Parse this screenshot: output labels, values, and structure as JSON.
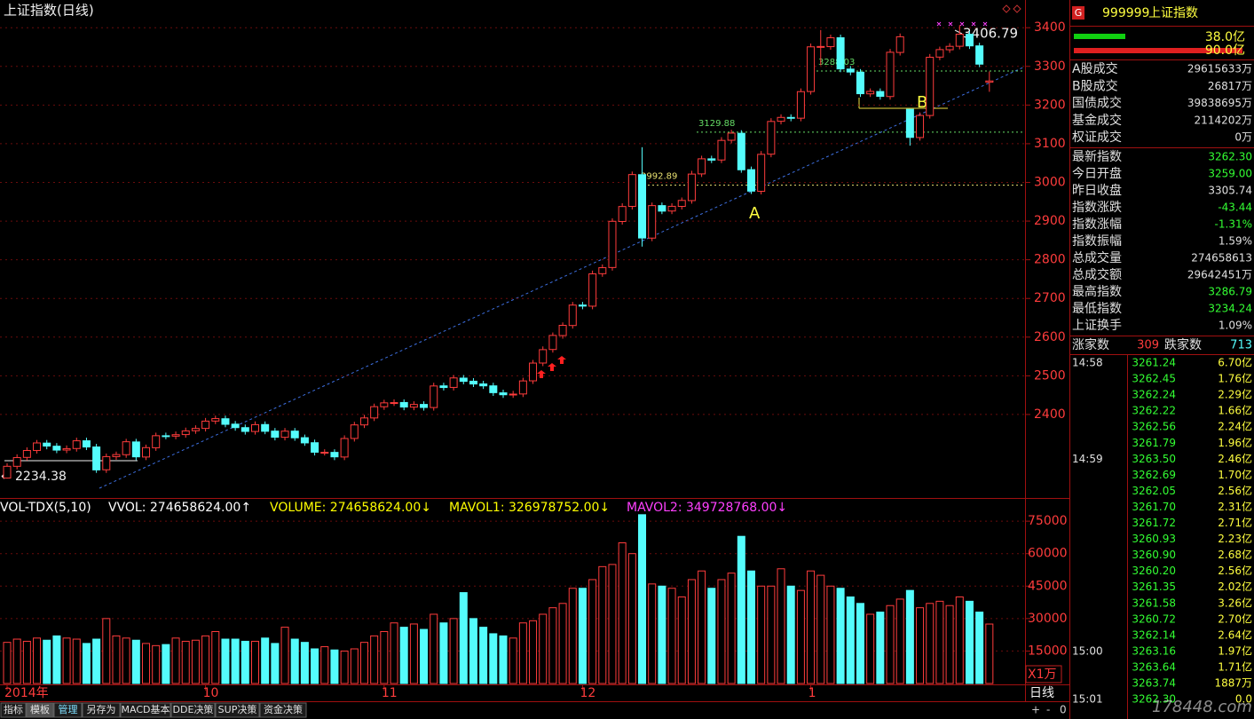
{
  "chart_data": [
    {
      "type": "candlestick",
      "title": "上证指数(日线)",
      "categories": [
        "2014年",
        null,
        null,
        null,
        null,
        null,
        null,
        null,
        null,
        null,
        null,
        null,
        null,
        null,
        null,
        null,
        null,
        null,
        null,
        null,
        "10",
        null,
        null,
        null,
        null,
        null,
        null,
        null,
        null,
        null,
        null,
        null,
        null,
        null,
        null,
        null,
        null,
        null,
        "11",
        null,
        null,
        null,
        null,
        null,
        null,
        null,
        null,
        null,
        null,
        null,
        null,
        null,
        null,
        null,
        null,
        null,
        null,
        null,
        "12",
        null,
        null,
        null,
        null,
        null,
        null,
        null,
        null,
        null,
        null,
        null,
        null,
        null,
        null,
        null,
        null,
        null,
        null,
        null,
        null,
        null,
        null,
        "1",
        null,
        null,
        null,
        null,
        null,
        null,
        null,
        null,
        null,
        null,
        null,
        null,
        null,
        null,
        null,
        null,
        null,
        null
      ],
      "open": [
        2235.5,
        2266,
        2289,
        2307,
        2326,
        2318,
        2308,
        2312,
        2332,
        2316,
        2257,
        2291,
        2296,
        2329,
        2290,
        2314,
        2345,
        2344,
        2348,
        2358,
        2364,
        2383,
        2389,
        2375,
        2366,
        2356,
        2374,
        2357,
        2341,
        2357,
        2340,
        2327,
        2302,
        2302,
        2290,
        2338,
        2373,
        2391,
        2420,
        2430,
        2431,
        2419,
        2426,
        2418,
        2474,
        2470,
        2494,
        2486,
        2479,
        2474,
        2456,
        2451,
        2453,
        2487,
        2533,
        2568,
        2604,
        2630,
        2683,
        2680,
        2764,
        2780,
        2899,
        2938,
        3020,
        2856,
        2940,
        2926,
        2938,
        2953,
        3022,
        3061,
        3058,
        3109,
        3127,
        3033,
        2977,
        3073,
        3158,
        3168,
        3166,
        3235,
        3351,
        3351,
        3374,
        3293,
        3285,
        3229,
        3235,
        3222,
        3336,
        3189,
        3116,
        3173,
        3324,
        3343,
        3352,
        3383,
        3353,
        3259
      ],
      "high": [
        2274,
        2297,
        2315,
        2334,
        2334,
        2326,
        2320,
        2340,
        2340,
        2324,
        2299,
        2304,
        2337,
        2337,
        2322,
        2353,
        2353,
        2356,
        2366,
        2372,
        2391,
        2397,
        2397,
        2383,
        2374,
        2382,
        2382,
        2365,
        2365,
        2365,
        2348,
        2335,
        2310,
        2310,
        2346,
        2381,
        2399,
        2428,
        2438,
        2439,
        2439,
        2434,
        2434,
        2482,
        2482,
        2502,
        2502,
        2494,
        2487,
        2482,
        2464,
        2461,
        2495,
        2541,
        2576,
        2612,
        2638,
        2691,
        2691,
        2772,
        2788,
        2907,
        2946,
        3028,
        3091,
        2948,
        2948,
        2946,
        2961,
        3030,
        3069,
        3069,
        3117,
        3136,
        3135,
        3041,
        3081,
        3166,
        3176,
        3176,
        3243,
        3359,
        3394,
        3382,
        3382,
        3301,
        3293,
        3243,
        3243,
        3345,
        3385,
        3189,
        3181,
        3332,
        3351,
        3360,
        3406.79,
        3391,
        3361,
        3286.79
      ],
      "low": [
        2234.38,
        2258,
        2281,
        2299,
        2310,
        2300,
        2300,
        2304,
        2308,
        2249,
        2249,
        2283,
        2288,
        2282,
        2282,
        2306,
        2336,
        2336,
        2340,
        2350,
        2356,
        2375,
        2367,
        2358,
        2348,
        2348,
        2349,
        2333,
        2333,
        2332,
        2319,
        2294,
        2294,
        2282,
        2282,
        2330,
        2365,
        2383,
        2412,
        2422,
        2411,
        2411,
        2410,
        2410,
        2462,
        2462,
        2478,
        2471,
        2466,
        2448,
        2443,
        2443,
        2445,
        2479,
        2525,
        2560,
        2596,
        2622,
        2672,
        2672,
        2756,
        2772,
        2891,
        2930,
        2834,
        2848,
        2918,
        2918,
        2930,
        2945,
        3014,
        3050,
        3050,
        3101,
        3025,
        2970,
        2969,
        3065,
        3150,
        3158,
        3158,
        3227,
        3303,
        3343,
        3285,
        3277,
        3221,
        3221,
        3214,
        3214,
        3328,
        3095,
        3108,
        3165,
        3316,
        3335,
        3344,
        3345,
        3298,
        3234.24
      ],
      "close": [
        2266.05,
        2288.63,
        2306.85,
        2326.43,
        2318.31,
        2307.88,
        2311.67,
        2331.95,
        2315.93,
        2256.68,
        2291.04,
        2296.31,
        2329.45,
        2290.44,
        2314.3,
        2345.1,
        2343.57,
        2347.72,
        2357.55,
        2363.87,
        2382.79,
        2389.37,
        2374.54,
        2366.01,
        2356.19,
        2373.67,
        2356.5,
        2341.18,
        2356.84,
        2339.66,
        2326.55,
        2302.42,
        2302.28,
        2290.44,
        2337.86,
        2373.03,
        2391.08,
        2420.18,
        2430.03,
        2430.68,
        2419.25,
        2425.86,
        2418.17,
        2473.67,
        2469.67,
        2494.48,
        2485.61,
        2478.82,
        2474.01,
        2456.37,
        2450.99,
        2452.66,
        2486.79,
        2532.88,
        2567.6,
        2604.35,
        2630.49,
        2682.84,
        2680.16,
        2763.55,
        2779.53,
        2899.46,
        2937.65,
        3020.26,
        2856.27,
        2940.01,
        2925.74,
        2938.17,
        2953.42,
        3021.52,
        3061.02,
        3057.52,
        3108.6,
        3127.45,
        3032.61,
        2977.44,
        3072.54,
        3157.6,
        3168.02,
        3165.82,
        3234.68,
        3350.52,
        3351.45,
        3373.95,
        3293.46,
        3285.41,
        3229.32,
        3235.3,
        3222.44,
        3336.45,
        3376.5,
        3116.35,
        3173.05,
        3323.61,
        3343.34,
        3351.76,
        3383.18,
        3352.96,
        3305.74,
        3262.3
      ],
      "up_color": "#ff3c3c",
      "down_color": "#54fcfc",
      "ylim": [
        2191,
        3467
      ],
      "yticks": [
        2400,
        2500,
        2600,
        2700,
        2800,
        2900,
        3000,
        3100,
        3200,
        3300,
        3400
      ],
      "grid": true,
      "levels": [
        {
          "value": 2992.89,
          "color": "#e8e070"
        },
        {
          "value": 3129.88,
          "color": "#66dd66"
        },
        {
          "value": 3288.03,
          "color": "#66dd66"
        }
      ],
      "annotations": [
        "A",
        "B"
      ]
    },
    {
      "type": "bar",
      "legend_texts": [
        {
          "text": "VOL-TDX(5,10)",
          "color": "#ffffff"
        },
        {
          "text": "VVOL: 274658624.00↑",
          "color": "#ffffff"
        },
        {
          "text": "VOLUME: 274658624.00↓",
          "color": "#ffff00"
        },
        {
          "text": "MAVOL1: 326978752.00↓",
          "color": "#ffff00"
        },
        {
          "text": "MAVOL2: 349728768.00↓",
          "color": "#ff40ff"
        }
      ],
      "unit_label": "X1万",
      "values": [
        19000,
        20500,
        19500,
        21000,
        20000,
        22000,
        21000,
        20500,
        18500,
        20500,
        30000,
        22000,
        21000,
        20000,
        18500,
        17500,
        18000,
        21000,
        19500,
        20000,
        22000,
        24000,
        20500,
        20500,
        19500,
        19500,
        21000,
        18500,
        26000,
        20500,
        19000,
        16000,
        17000,
        15500,
        15000,
        16000,
        19000,
        22000,
        24000,
        28000,
        26000,
        27500,
        25000,
        32000,
        28000,
        30000,
        42000,
        30000,
        26000,
        23000,
        22000,
        21000,
        28000,
        29000,
        32000,
        35000,
        37000,
        44000,
        44000,
        48000,
        54000,
        55000,
        65000,
        60000,
        78000,
        46000,
        45000,
        44000,
        40000,
        48000,
        52000,
        44000,
        48000,
        51000,
        68000,
        52000,
        45000,
        45000,
        53000,
        45000,
        43000,
        52000,
        50000,
        45000,
        44000,
        40000,
        37000,
        32000,
        33000,
        36000,
        39000,
        43000,
        35000,
        37000,
        38000,
        36000,
        40000,
        38000,
        33000,
        27465.86
      ],
      "ylim": [
        0,
        80800
      ],
      "yticks": [
        15000,
        30000,
        45000,
        60000,
        75000
      ]
    }
  ],
  "quote_panel": {
    "icon": "G",
    "code": "999999",
    "name": "上证指数",
    "buy_amount": "38.0亿",
    "sell_amount": "90.0亿",
    "rows": [
      {
        "label": "A股成交",
        "value": "29615633万",
        "color": "#e0e0e0"
      },
      {
        "label": "B股成交",
        "value": "26817万",
        "color": "#e0e0e0"
      },
      {
        "label": "国债成交",
        "value": "39838695万",
        "color": "#e0e0e0"
      },
      {
        "label": "基金成交",
        "value": "2114202万",
        "color": "#e0e0e0"
      },
      {
        "label": "权证成交",
        "value": "0万",
        "color": "#e0e0e0"
      },
      {
        "label": "最新指数",
        "value": "3262.30",
        "color": "#33ff33"
      },
      {
        "label": "今日开盘",
        "value": "3259.00",
        "color": "#33ff33"
      },
      {
        "label": "昨日收盘",
        "value": "3305.74",
        "color": "#e0e0e0"
      },
      {
        "label": "指数涨跌",
        "value": "-43.44",
        "color": "#33ff33"
      },
      {
        "label": "指数涨幅",
        "value": "-1.31%",
        "color": "#33ff33"
      },
      {
        "label": "指数振幅",
        "value": "1.59%",
        "color": "#e0e0e0"
      },
      {
        "label": "总成交量",
        "value": "274658613",
        "color": "#e0e0e0"
      },
      {
        "label": "总成交额",
        "value": "29642451万",
        "color": "#e0e0e0"
      },
      {
        "label": "最高指数",
        "value": "3286.79",
        "color": "#33ff33"
      },
      {
        "label": "最低指数",
        "value": "3234.24",
        "color": "#33ff33"
      },
      {
        "label": "上证换手",
        "value": "1.09%",
        "color": "#e0e0e0"
      }
    ],
    "advancers_label": "涨家数",
    "advancers": "309",
    "decliners_label": "跌家数",
    "decliners": "713",
    "ticks": [
      {
        "time": "14:58",
        "price": "3261.24",
        "amount": "6.70亿"
      },
      {
        "time": null,
        "price": "3262.45",
        "amount": "1.76亿"
      },
      {
        "time": null,
        "price": "3262.24",
        "amount": "2.29亿"
      },
      {
        "time": null,
        "price": "3262.22",
        "amount": "1.66亿"
      },
      {
        "time": null,
        "price": "3262.56",
        "amount": "2.24亿"
      },
      {
        "time": null,
        "price": "3261.79",
        "amount": "1.96亿"
      },
      {
        "time": "14:59",
        "price": "3263.50",
        "amount": "2.46亿"
      },
      {
        "time": null,
        "price": "3262.69",
        "amount": "1.70亿"
      },
      {
        "time": null,
        "price": "3262.05",
        "amount": "2.56亿"
      },
      {
        "time": null,
        "price": "3261.70",
        "amount": "2.31亿"
      },
      {
        "time": null,
        "price": "3261.72",
        "amount": "2.71亿"
      },
      {
        "time": null,
        "price": "3260.93",
        "amount": "2.23亿"
      },
      {
        "time": null,
        "price": "3260.90",
        "amount": "2.68亿"
      },
      {
        "time": null,
        "price": "3260.20",
        "amount": "2.56亿"
      },
      {
        "time": null,
        "price": "3261.35",
        "amount": "2.02亿"
      },
      {
        "time": null,
        "price": "3261.58",
        "amount": "3.26亿"
      },
      {
        "time": null,
        "price": "3260.72",
        "amount": "2.70亿"
      },
      {
        "time": null,
        "price": "3262.14",
        "amount": "2.64亿"
      },
      {
        "time": "15:00",
        "price": "3263.16",
        "amount": "1.97亿"
      },
      {
        "time": null,
        "price": "3263.64",
        "amount": "1.71亿"
      },
      {
        "time": null,
        "price": "3263.74",
        "amount": "1887万"
      },
      {
        "time": "15:01",
        "price": "3262.30",
        "amount": "0.0"
      }
    ]
  },
  "toolbar": {
    "tabs": [
      "指标",
      "模板",
      "管理",
      "另存为",
      "MACD基本",
      "DDE决策",
      "SUP决策",
      "资金决策"
    ],
    "period": "日线",
    "buttons": [
      "+",
      "-",
      "0"
    ]
  },
  "watermark": "178448.com"
}
